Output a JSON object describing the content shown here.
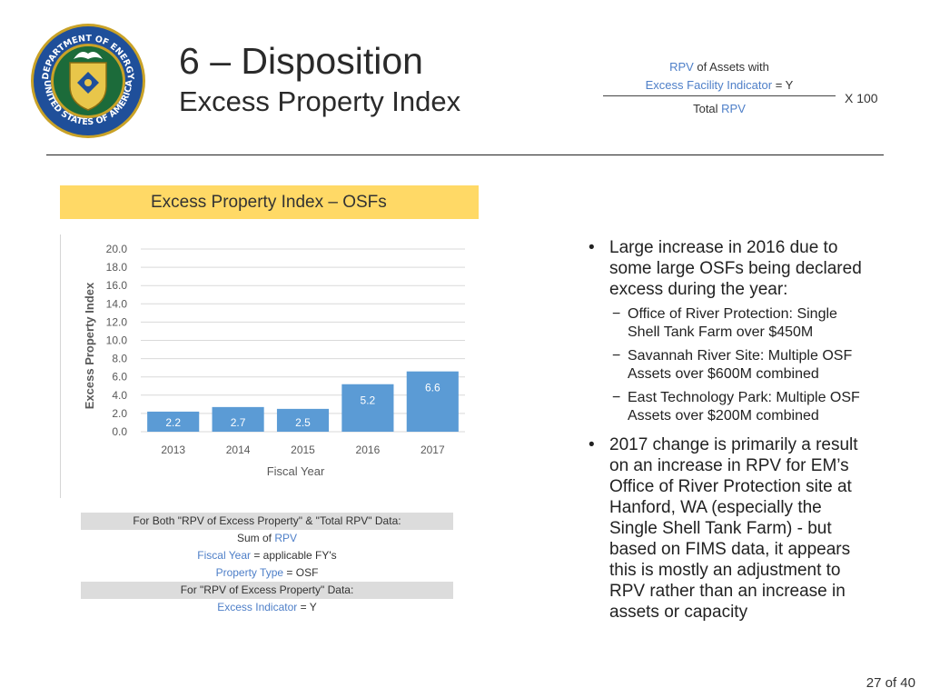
{
  "header": {
    "title": "6 – Disposition",
    "subtitle": "Excess Property Index",
    "seal_text": "DEPARTMENT OF ENERGY · UNITED STATES OF AMERICA"
  },
  "formula": {
    "numerator_line1_term": "RPV",
    "numerator_line1_rest": " of Assets with",
    "numerator_line2_term": "Excess Facility Indicator",
    "numerator_line2_rest": " = Y",
    "denominator_prefix": "Total ",
    "denominator_term": "RPV",
    "multiplier": "X  100"
  },
  "panel": {
    "heading": "Excess Property Index – OSFs"
  },
  "chart_data": {
    "type": "bar",
    "categories": [
      "2013",
      "2014",
      "2015",
      "2016",
      "2017"
    ],
    "values": [
      2.2,
      2.7,
      2.5,
      5.2,
      6.6
    ],
    "data_labels": [
      "2.2",
      "2.7",
      "2.5",
      "5.2",
      "6.6"
    ],
    "xlabel": "Fiscal Year",
    "ylabel": "Excess Property Index",
    "ylim": [
      0,
      20
    ],
    "yticks": [
      "0.0",
      "2.0",
      "4.0",
      "6.0",
      "8.0",
      "10.0",
      "12.0",
      "14.0",
      "16.0",
      "18.0",
      "20.0"
    ],
    "grid": true,
    "bar_color": "#5b9bd5"
  },
  "query_table": {
    "row1": "For Both \"RPV of Excess Property\" & \"Total RPV\" Data:",
    "row2_prefix": "Sum of ",
    "row2_term": "RPV",
    "row3_term": "Fiscal Year",
    "row3_rest": " = applicable FY's",
    "row4_term": "Property Type",
    "row4_rest": " = OSF",
    "row5": "For \"RPV of Excess Property\" Data:",
    "row6_term": "Excess Indicator",
    "row6_rest": " = Y"
  },
  "bullets": {
    "b1": "Large increase in 2016 due to some large OSFs being declared excess during the year:",
    "b1_subs": [
      "Office of River Protection:  Single Shell Tank Farm over $450M",
      "Savannah River Site:  Multiple OSF Assets over $600M combined",
      "East Technology Park: Multiple OSF Assets over $200M combined"
    ],
    "b2": "2017 change is primarily a result on an increase in RPV for EM’s Office of River Protection site at Hanford, WA (especially the Single Shell Tank Farm) - but based on FIMS data, it appears this is mostly an adjustment to RPV rather than an increase in assets or capacity",
    "bullet_glyph": "•",
    "dash_glyph": "−"
  },
  "footer": {
    "page": "27 of 40"
  },
  "colors": {
    "accent_blue": "#4e7fc8",
    "panel_yellow": "#ffd966",
    "bar_blue": "#5b9bd5"
  }
}
